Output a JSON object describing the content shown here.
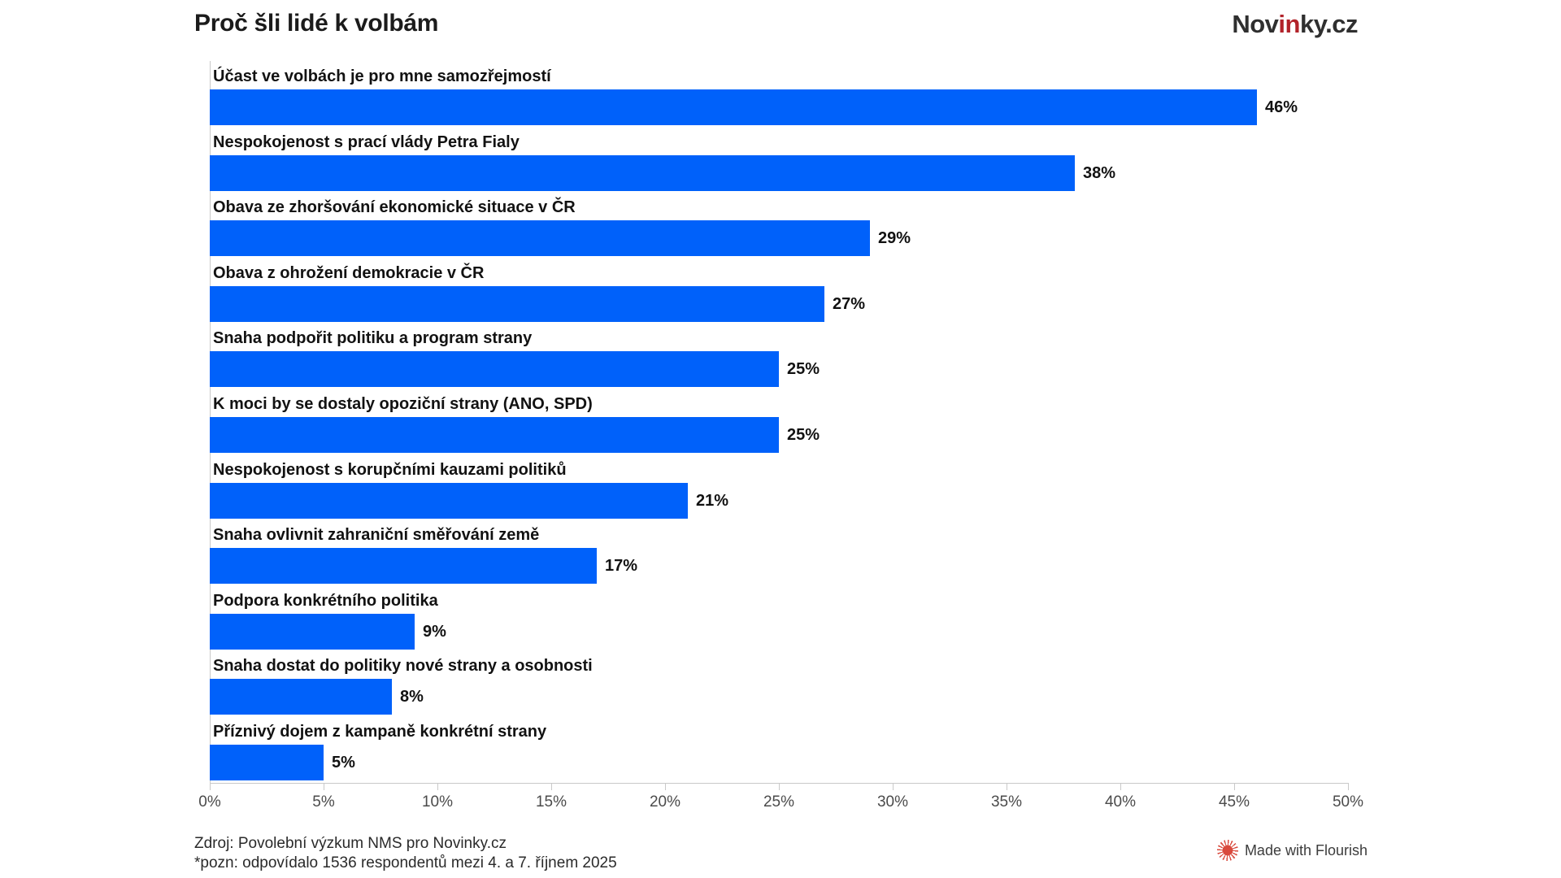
{
  "header": {
    "title": "Proč šli lidé k volbám",
    "logo": {
      "part1": "Nov",
      "part2": "in",
      "part3": "ky.cz"
    }
  },
  "chart_data": {
    "type": "bar",
    "orientation": "horizontal",
    "title": "Proč šli lidé k volbám",
    "categories": [
      "Účast ve volbách je pro mne samozřejmostí",
      "Nespokojenost s prací vlády Petra Fialy",
      "Obava ze zhoršování ekonomické situace v ČR",
      "Obava z ohrožení demokracie v ČR",
      "Snaha podpořit politiku a program strany",
      "K moci by se dostaly opoziční strany (ANO, SPD)",
      "Nespokojenost s korupčními kauzami politiků",
      "Snaha ovlivnit zahraniční směřování země",
      "Podpora konkrétního politika",
      "Snaha dostat do politiky nové strany a osobnosti",
      "Příznivý dojem z kampaně konkrétní strany"
    ],
    "values": [
      46,
      38,
      29,
      27,
      25,
      25,
      21,
      17,
      9,
      8,
      5
    ],
    "value_suffix": "%",
    "x_axis": {
      "min": 0,
      "max": 50,
      "ticks": [
        "0%",
        "5%",
        "10%",
        "15%",
        "20%",
        "25%",
        "30%",
        "35%",
        "40%",
        "45%",
        "50%"
      ]
    },
    "grid": false,
    "legend": "none",
    "bar_color": "#0061fa"
  },
  "colors": {
    "bar": "#0061fa",
    "axis_line": "#c9c9c9",
    "axis_text": "#4b4b4b",
    "logo_dark": "#2f2f2f",
    "logo_red": "#b2232a",
    "flourish_red": "#d94a3d"
  },
  "footer": {
    "source": "Zdroj: Povolební výzkum NMS pro Novinky.cz",
    "note": "*pozn: odpovídalo 1536 respondentů mezi 4. a 7. říjnem 2025"
  },
  "attribution": {
    "label": "Made with Flourish"
  }
}
